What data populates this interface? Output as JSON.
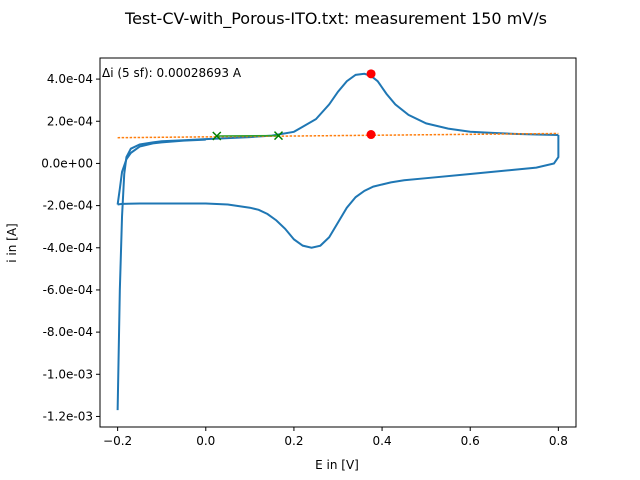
{
  "chart_data": {
    "type": "line",
    "title": "Test-CV-with_Porous-ITO.txt: measurement 150 mV/s",
    "xlabel": "E in [V]",
    "ylabel": "i in [A]",
    "xlim": [
      -0.24,
      0.84
    ],
    "ylim": [
      -0.00125,
      0.0005
    ],
    "x_ticks": [
      -0.2,
      0.0,
      0.2,
      0.4,
      0.6,
      0.8
    ],
    "x_tick_labels": [
      "−0.2",
      "0.0",
      "0.2",
      "0.4",
      "0.6",
      "0.8"
    ],
    "y_ticks": [
      0.0004,
      0.0002,
      0.0,
      -0.0002,
      -0.0004,
      -0.0006,
      -0.0008,
      -0.001,
      -0.0012
    ],
    "y_tick_labels": [
      "4.0e-04",
      "2.0e-04",
      "0.0e+00",
      "-2.0e-04",
      "-4.0e-04",
      "-6.0e-04",
      "-8.0e-04",
      "-1.0e-03",
      "-1.2e-03"
    ],
    "grid": false,
    "annotation": "Δi (5 sf): 0.00028693 A",
    "colors": {
      "cv": "#1f77b4",
      "baseline": "#ff7f0e",
      "fit": "#2ca02c",
      "peak": "#ff0000",
      "marker": "#008000"
    },
    "series": [
      {
        "role": "cv-forward",
        "x": [
          -0.2,
          -0.195,
          -0.19,
          -0.185,
          -0.18,
          -0.17,
          -0.15,
          -0.12,
          -0.1,
          -0.05,
          0.0,
          0.05,
          0.1,
          0.15,
          0.2,
          0.25,
          0.28,
          0.3,
          0.32,
          0.34,
          0.36,
          0.375,
          0.39,
          0.41,
          0.43,
          0.46,
          0.5,
          0.55,
          0.6,
          0.65,
          0.7,
          0.75,
          0.8
        ],
        "y": [
          -0.00117,
          -0.0006,
          -0.00025,
          -5e-05,
          3e-05,
          7e-05,
          9e-05,
          0.0001,
          0.000105,
          0.00011,
          0.000115,
          0.00012,
          0.000125,
          0.000132,
          0.00015,
          0.00021,
          0.00028,
          0.00034,
          0.00039,
          0.00042,
          0.000425,
          0.000415,
          0.00039,
          0.00033,
          0.00028,
          0.00023,
          0.00019,
          0.000165,
          0.00015,
          0.000145,
          0.00014,
          0.000137,
          0.000135
        ]
      },
      {
        "role": "cv-reverse",
        "x": [
          0.8,
          0.8,
          0.79,
          0.75,
          0.7,
          0.6,
          0.5,
          0.45,
          0.42,
          0.4,
          0.38,
          0.36,
          0.34,
          0.32,
          0.3,
          0.28,
          0.26,
          0.24,
          0.22,
          0.2,
          0.18,
          0.16,
          0.14,
          0.12,
          0.1,
          0.05,
          0.0,
          -0.05,
          -0.1,
          -0.15,
          -0.19,
          -0.2
        ],
        "y": [
          0.000135,
          3e-05,
          0.0,
          -2e-05,
          -3e-05,
          -5e-05,
          -7e-05,
          -8e-05,
          -9e-05,
          -0.0001,
          -0.00011,
          -0.00013,
          -0.00016,
          -0.00021,
          -0.00028,
          -0.00035,
          -0.00039,
          -0.0004,
          -0.00039,
          -0.00036,
          -0.00031,
          -0.00027,
          -0.00024,
          -0.00022,
          -0.00021,
          -0.000195,
          -0.00019,
          -0.00019,
          -0.00019,
          -0.00019,
          -0.000192,
          -0.000195
        ]
      },
      {
        "role": "cv-return",
        "x": [
          -0.2,
          -0.195,
          -0.19,
          -0.18,
          -0.17,
          -0.15,
          -0.12,
          -0.1,
          -0.05,
          0.0
        ],
        "y": [
          -0.000195,
          -0.00012,
          -4e-05,
          2e-05,
          5e-05,
          8e-05,
          9.5e-05,
          0.0001,
          0.000108,
          0.000113
        ]
      },
      {
        "role": "baseline",
        "x": [
          -0.2,
          0.8
        ],
        "y": [
          0.000122,
          0.000142
        ]
      },
      {
        "role": "fit-region",
        "x": [
          0.025,
          0.165
        ],
        "y": [
          0.00013,
          0.000132
        ]
      }
    ],
    "markers": [
      {
        "role": "fit-start",
        "x": 0.025,
        "y": 0.00013,
        "shape": "x"
      },
      {
        "role": "fit-end",
        "x": 0.165,
        "y": 0.000132,
        "shape": "x"
      },
      {
        "role": "peak",
        "x": 0.375,
        "y": 0.000425,
        "shape": "circle"
      },
      {
        "role": "peak-baseline",
        "x": 0.375,
        "y": 0.000137,
        "shape": "circle"
      }
    ]
  }
}
